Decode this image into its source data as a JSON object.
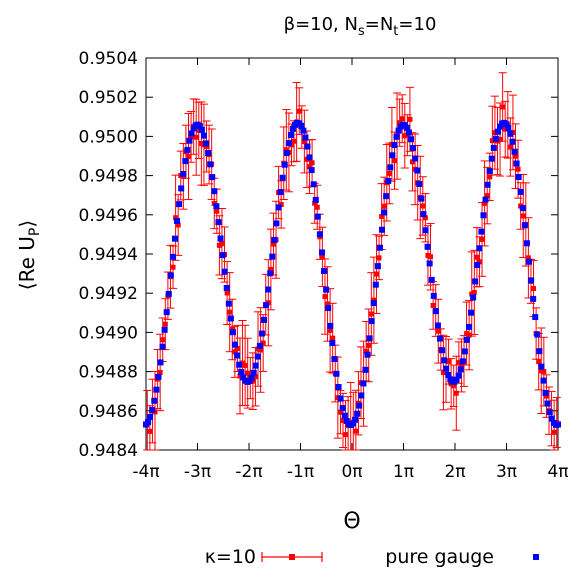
{
  "chart_data": {
    "type": "scatter",
    "title": {
      "prefix": "β=10, N",
      "sub1": "s",
      "mid": "=N",
      "sub2": "t",
      "suffix": "=10"
    },
    "xlabel": "Θ",
    "ylabel": {
      "open": "⟨",
      "main": "Re U",
      "sub": "P",
      "close": "⟩"
    },
    "x_unit": "π",
    "xlim": [
      -4,
      4
    ],
    "ylim": [
      0.9484,
      0.9504
    ],
    "x_ticks": [
      -4,
      -3,
      -2,
      -1,
      0,
      1,
      2,
      3,
      4
    ],
    "x_tick_labels": [
      "-4π",
      "-3π",
      "-2π",
      "-1π",
      "0π",
      "1π",
      "2π",
      "3π",
      "4π"
    ],
    "y_ticks": [
      0.9484,
      0.9486,
      0.9488,
      0.949,
      0.9492,
      0.9494,
      0.9496,
      0.9498,
      0.95,
      0.9502,
      0.9504
    ],
    "y_tick_labels": [
      "0.9484",
      "0.9486",
      "0.9488",
      "0.9490",
      "0.9492",
      "0.9494",
      "0.9496",
      "0.9498",
      "0.9500",
      "0.9502",
      "0.9504"
    ],
    "grid": false,
    "legend_position": "bottom",
    "curve_model": {
      "description_hidden": false,
      "baseline": 0.94935,
      "amp_cos": 0.00071,
      "amp_cos2": 0.00011,
      "harmonic": 0.5,
      "skew": 6e-05
    },
    "x_range_sampled": [
      -4,
      4
    ],
    "series": [
      {
        "name": "κ=10",
        "color": "#ff0000",
        "marker": "square-with-errorbar",
        "points": 160,
        "error_typical": 0.00017
      },
      {
        "name": "pure gauge",
        "color": "#0000ff",
        "marker": "square",
        "points": 200
      }
    ]
  }
}
